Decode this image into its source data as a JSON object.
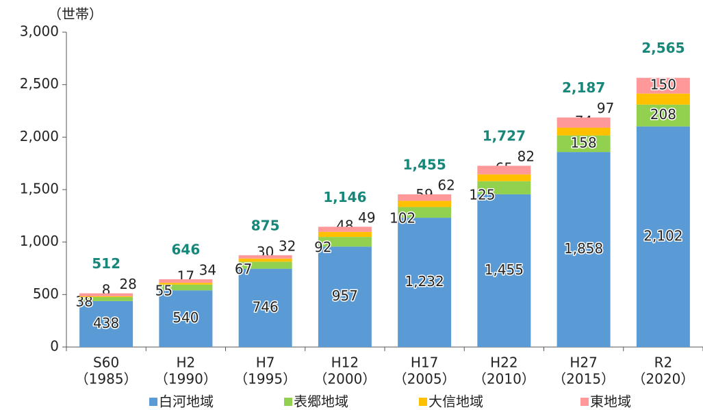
{
  "chart_data": {
    "type": "stacked_bar",
    "y_unit": "（世帯）",
    "categories": [
      [
        "S60",
        "（1985）"
      ],
      [
        "H2",
        "（1990）"
      ],
      [
        "H7",
        "（1995）"
      ],
      [
        "H12",
        "（2000）"
      ],
      [
        "H17",
        "（2005）"
      ],
      [
        "H22",
        "（2010）"
      ],
      [
        "H27",
        "（2015）"
      ],
      [
        "R2",
        "（2020）"
      ]
    ],
    "series": [
      {
        "name": "白河地域",
        "color": "#5b9bd5",
        "values": [
          438,
          540,
          746,
          957,
          1232,
          1455,
          1858,
          2102
        ],
        "value_labels": [
          "438",
          "540",
          "746",
          "957",
          "1,232",
          "1,455",
          "1,858",
          "2,102"
        ]
      },
      {
        "name": "表郷地域",
        "color": "#92d050",
        "values": [
          38,
          55,
          67,
          92,
          102,
          125,
          158,
          208
        ]
      },
      {
        "name": "大信地域",
        "color": "#ffc000",
        "values": [
          8,
          17,
          30,
          48,
          59,
          65,
          74,
          105
        ]
      },
      {
        "name": "東地域",
        "color": "#ff9999",
        "values": [
          28,
          34,
          32,
          49,
          62,
          82,
          97,
          150
        ]
      }
    ],
    "totals": [
      512,
      646,
      875,
      1146,
      1455,
      1727,
      2187,
      2565
    ],
    "totals_labels": [
      "512",
      "646",
      "875",
      "1,146",
      "1,455",
      "1,727",
      "2,187",
      "2,565"
    ],
    "ylim": [
      0,
      3000
    ],
    "yticks": [
      0,
      500,
      {
        "value": 1000,
        "label": "1,000"
      },
      {
        "value": 1500,
        "label": "1,500"
      },
      {
        "value": 2000,
        "label": "2,000"
      },
      {
        "value": 2500,
        "label": "2,500"
      },
      {
        "value": 3000,
        "label": "3,000"
      }
    ],
    "legend": "bottom"
  }
}
